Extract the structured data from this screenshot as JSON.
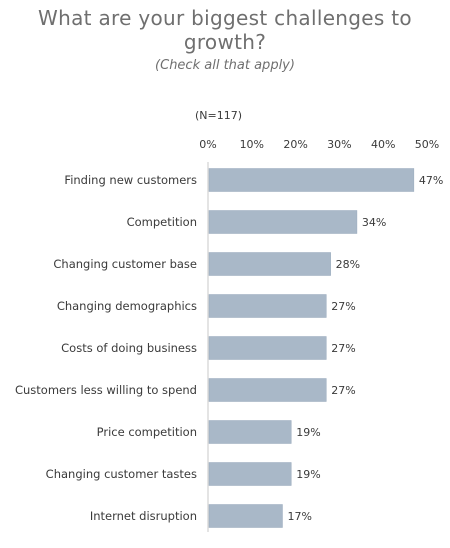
{
  "chart_data": {
    "type": "bar",
    "orientation": "horizontal",
    "title": "What are your biggest challenges to growth?",
    "subtitle": "(Check all that apply)",
    "note": "(N=117)",
    "categories": [
      "Finding new customers",
      "Competition",
      "Changing customer base",
      "Changing demographics",
      "Costs of doing business",
      "Customers less willing to spend",
      "Price competition",
      "Changing customer tastes",
      "Internet disruption"
    ],
    "values": [
      47,
      34,
      28,
      27,
      27,
      27,
      19,
      19,
      17
    ],
    "value_labels": [
      "47%",
      "34%",
      "28%",
      "27%",
      "27%",
      "27%",
      "19%",
      "19%",
      "17%"
    ],
    "x_ticks": [
      "0%",
      "10%",
      "20%",
      "30%",
      "40%",
      "50%"
    ],
    "xlim": [
      0,
      50
    ],
    "xlabel": "",
    "ylabel": "",
    "grid": false,
    "bar_color": "#a9b8c8"
  }
}
